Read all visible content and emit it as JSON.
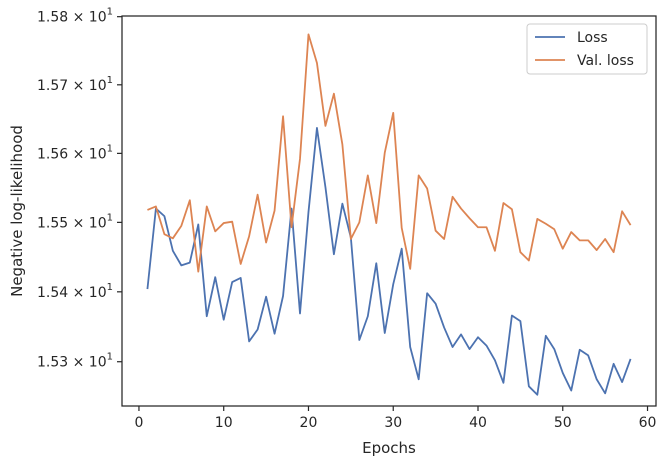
{
  "chart_data": {
    "type": "line",
    "xlabel": "Epochs",
    "ylabel": "Negative log-likelihood",
    "xlim": [
      -2,
      61
    ],
    "ylim": [
      15.237,
      15.801
    ],
    "yscale": "log",
    "grid": false,
    "legend_position": "top-right",
    "x_ticks": [
      {
        "value": 0,
        "label": "0"
      },
      {
        "value": 10,
        "label": "10"
      },
      {
        "value": 20,
        "label": "20"
      },
      {
        "value": 30,
        "label": "30"
      },
      {
        "value": 40,
        "label": "40"
      },
      {
        "value": 50,
        "label": "50"
      },
      {
        "value": 60,
        "label": "60"
      }
    ],
    "y_ticks": [
      {
        "value": 15.3,
        "mantissa": "1.53",
        "times": "×",
        "base": "10",
        "exponent": "1"
      },
      {
        "value": 15.4,
        "mantissa": "1.54",
        "times": "×",
        "base": "10",
        "exponent": "1"
      },
      {
        "value": 15.5,
        "mantissa": "1.55",
        "times": "×",
        "base": "10",
        "exponent": "1"
      },
      {
        "value": 15.6,
        "mantissa": "1.56",
        "times": "×",
        "base": "10",
        "exponent": "1"
      },
      {
        "value": 15.7,
        "mantissa": "1.57",
        "times": "×",
        "base": "10",
        "exponent": "1"
      },
      {
        "value": 15.8,
        "mantissa": "1.58",
        "times": "×",
        "base": "10",
        "exponent": "1"
      }
    ],
    "x": [
      1,
      2,
      3,
      4,
      5,
      6,
      7,
      8,
      9,
      10,
      11,
      12,
      13,
      14,
      15,
      16,
      17,
      18,
      19,
      20,
      21,
      22,
      23,
      24,
      25,
      26,
      27,
      28,
      29,
      30,
      31,
      32,
      33,
      34,
      35,
      36,
      37,
      38,
      39,
      40,
      41,
      42,
      43,
      44,
      45,
      46,
      47,
      48,
      49,
      50,
      51,
      52,
      53,
      54,
      55,
      56,
      57,
      58
    ],
    "series": [
      {
        "name": "Loss",
        "color": "#4c72b0",
        "values": [
          15.404,
          15.52,
          15.509,
          15.459,
          15.438,
          15.442,
          15.497,
          15.365,
          15.421,
          15.36,
          15.414,
          15.42,
          15.329,
          15.346,
          15.393,
          15.34,
          15.394,
          15.52,
          15.369,
          15.515,
          15.637,
          15.551,
          15.454,
          15.527,
          15.478,
          15.331,
          15.365,
          15.441,
          15.341,
          15.411,
          15.462,
          15.321,
          15.275,
          15.398,
          15.383,
          15.349,
          15.321,
          15.339,
          15.318,
          15.335,
          15.323,
          15.302,
          15.27,
          15.366,
          15.358,
          15.265,
          15.253,
          15.337,
          15.318,
          15.284,
          15.259,
          15.317,
          15.309,
          15.275,
          15.255,
          15.297,
          15.271,
          15.304
        ]
      },
      {
        "name": "Val. loss",
        "color": "#dd8452",
        "values": [
          15.518,
          15.523,
          15.483,
          15.477,
          15.495,
          15.532,
          15.429,
          15.523,
          15.487,
          15.499,
          15.501,
          15.44,
          15.48,
          15.54,
          15.471,
          15.517,
          15.654,
          15.493,
          15.592,
          15.774,
          15.732,
          15.64,
          15.687,
          15.613,
          15.476,
          15.5,
          15.568,
          15.499,
          15.601,
          15.659,
          15.492,
          15.433,
          15.568,
          15.549,
          15.488,
          15.476,
          15.537,
          15.52,
          15.506,
          15.493,
          15.493,
          15.459,
          15.528,
          15.519,
          15.457,
          15.445,
          15.505,
          15.498,
          15.49,
          15.462,
          15.486,
          15.474,
          15.474,
          15.46,
          15.476,
          15.457,
          15.516,
          15.496
        ]
      }
    ]
  }
}
